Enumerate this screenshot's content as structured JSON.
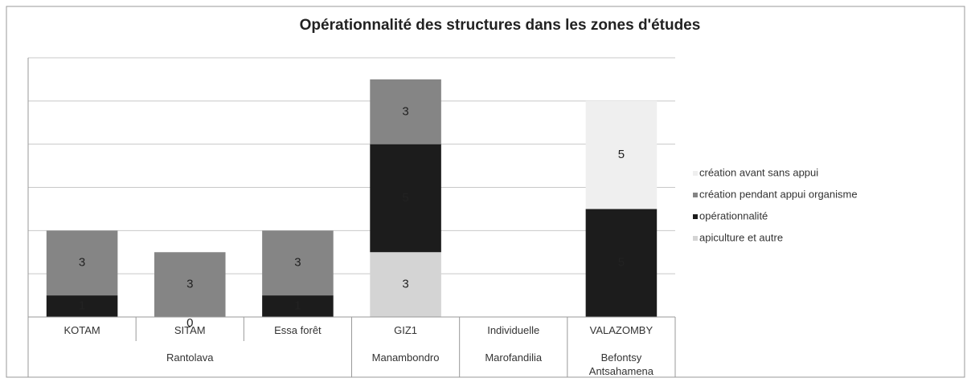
{
  "chart_data": {
    "type": "stacked_bar",
    "title": "Opérationnalité des structures dans les zones d'études",
    "categories": [
      "KOTAM",
      "SITAM",
      "Essa forêt",
      "GIZ1",
      "Individuelle",
      "VALAZOMBY"
    ],
    "category_groups": [
      {
        "label": "Rantolava",
        "count": 3
      },
      {
        "label": "Manambondro",
        "count": 1
      },
      {
        "label": "Marofandilia",
        "count": 1
      },
      {
        "label": "Befontsy Antsahamena",
        "count": 1
      }
    ],
    "series": [
      {
        "name": "apiculture et autre",
        "color": "#d4d4d4",
        "values": [
          null,
          null,
          null,
          3,
          null,
          null
        ]
      },
      {
        "name": "opérationnalité",
        "color": "#1c1c1c",
        "values": [
          1,
          0,
          1,
          5,
          null,
          5
        ]
      },
      {
        "name": "création  pendant appui organisme",
        "color": "#858585",
        "values": [
          3,
          3,
          3,
          3,
          null,
          null
        ]
      },
      {
        "name": "création avant sans appui",
        "color": "#efefef",
        "values": [
          null,
          null,
          null,
          null,
          null,
          5
        ]
      }
    ],
    "ylim": [
      0,
      12
    ],
    "yticks": [
      0,
      2,
      4,
      6,
      8,
      10,
      12
    ],
    "grid": true,
    "legend": "right"
  }
}
